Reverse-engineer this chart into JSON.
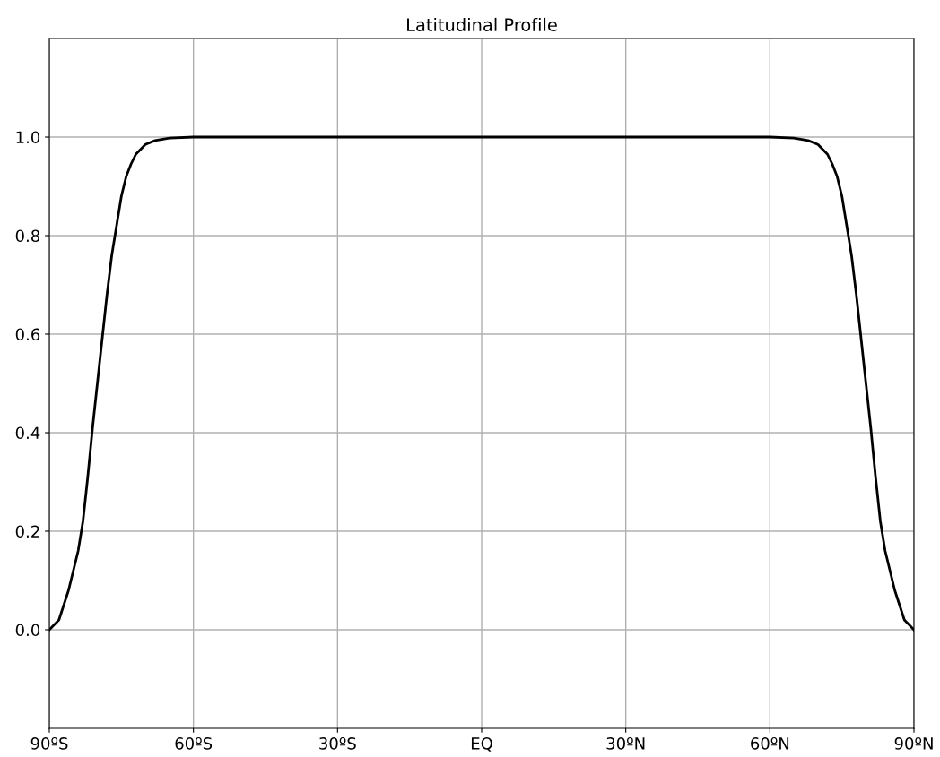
{
  "chart_data": {
    "type": "line",
    "title": "Latitudinal Profile",
    "x": [
      -90,
      -88,
      -86,
      -84,
      -83,
      -82,
      -81,
      -80,
      -79,
      -78,
      -77,
      -76,
      -75,
      -74,
      -73,
      -72,
      -70,
      -68,
      -65,
      -60,
      0,
      60,
      65,
      68,
      70,
      72,
      73,
      74,
      75,
      76,
      77,
      78,
      79,
      80,
      81,
      82,
      83,
      84,
      86,
      88,
      90
    ],
    "series": [
      {
        "color": "#000000",
        "values": [
          0,
          0.02,
          0.08,
          0.16,
          0.22,
          0.31,
          0.41,
          0.5,
          0.59,
          0.68,
          0.76,
          0.82,
          0.88,
          0.92,
          0.945,
          0.965,
          0.985,
          0.993,
          0.998,
          1.0,
          1.0,
          1.0,
          0.998,
          0.993,
          0.985,
          0.965,
          0.945,
          0.92,
          0.88,
          0.82,
          0.76,
          0.68,
          0.59,
          0.5,
          0.41,
          0.31,
          0.22,
          0.16,
          0.08,
          0.02,
          0
        ]
      }
    ],
    "xlim": [
      -90,
      90
    ],
    "xticks": [
      {
        "value": -90,
        "label": "90ºS"
      },
      {
        "value": -60,
        "label": "60ºS"
      },
      {
        "value": -30,
        "label": "30ºS"
      },
      {
        "value": 0,
        "label": "EQ"
      },
      {
        "value": 30,
        "label": "30ºN"
      },
      {
        "value": 60,
        "label": "60ºN"
      },
      {
        "value": 90,
        "label": "90ºN"
      }
    ],
    "ylim": [
      -0.2,
      1.2
    ],
    "yticks": [
      {
        "value": 0,
        "label": "0.0"
      },
      {
        "value": 0.2,
        "label": "0.2"
      },
      {
        "value": 0.4,
        "label": "0.4"
      },
      {
        "value": 0.6,
        "label": "0.6"
      },
      {
        "value": 0.8,
        "label": "0.8"
      },
      {
        "value": 1.0,
        "label": "1.0"
      }
    ],
    "grid": true
  }
}
